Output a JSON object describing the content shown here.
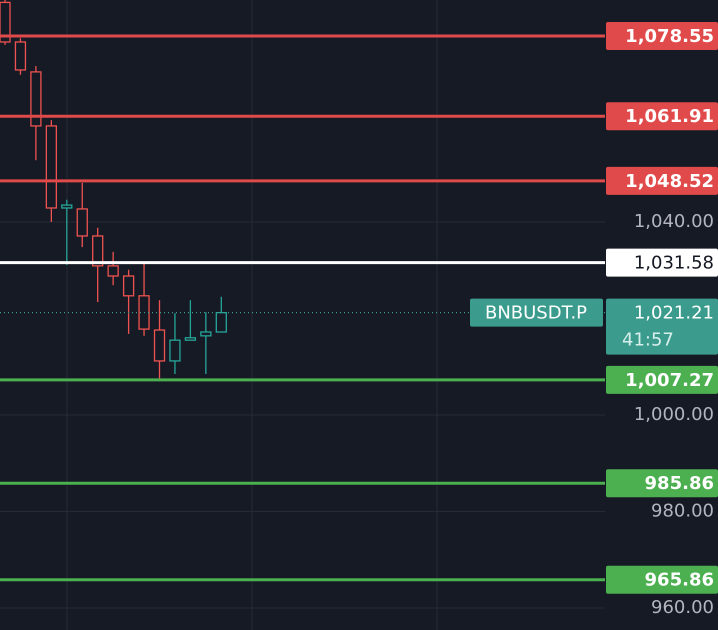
{
  "chart_data": {
    "type": "candlestick",
    "ylim": [
      955.44,
      1086
    ],
    "yticks": [
      {
        "value": 1040,
        "label": "1,040.00"
      },
      {
        "value": 1000,
        "label": "1,000.00"
      },
      {
        "value": 980,
        "label": "980.00"
      },
      {
        "value": 960,
        "label": "960.00"
      }
    ],
    "grid": true,
    "up_color": "#26a69a",
    "down_color": "#ef5350",
    "candles": {
      "open": [
        1085.5,
        1077.3,
        1071.1,
        1059.9,
        1042.9,
        1042.7,
        1037.1,
        1030.9,
        1028.8,
        1024.7,
        1017.6,
        1011.2,
        1015.5,
        1016.4,
        1017.2
      ],
      "high": [
        1086.0,
        1078.1,
        1072.3,
        1061.1,
        1044.6,
        1048.1,
        1038.8,
        1033.8,
        1030.1,
        1031.3,
        1023.8,
        1021.1,
        1023.8,
        1021.3,
        1024.5
      ],
      "low": [
        1076.7,
        1070.5,
        1052.8,
        1040.0,
        1031.1,
        1034.8,
        1023.4,
        1026.9,
        1016.8,
        1016.4,
        1007.0,
        1008.5,
        1015.5,
        1008.5,
        1017.2
      ],
      "close": [
        1077.3,
        1071.5,
        1059.9,
        1042.9,
        1043.5,
        1037.1,
        1030.9,
        1028.8,
        1024.7,
        1017.8,
        1011.2,
        1015.5,
        1016.0,
        1017.2,
        1021.21
      ]
    },
    "levels": {
      "values": [
        1078.55,
        1061.91,
        1048.52,
        1031.58,
        1007.27,
        985.86,
        965.86
      ],
      "value_labels": [
        "1,078.55",
        "1,061.91",
        "1,048.52",
        "1,031.58",
        "1,007.27",
        "985.86",
        "965.86"
      ],
      "colors": [
        "#e04a4a",
        "#e04a4a",
        "#e04a4a",
        "#ffffff",
        "#4caf50",
        "#4caf50",
        "#4caf50"
      ]
    },
    "current_price": {
      "symbol": "BNBUSDT.P",
      "value": 1021.21,
      "label": "1,021.21",
      "countdown": "41:57",
      "color": "#3b9c8e"
    }
  }
}
